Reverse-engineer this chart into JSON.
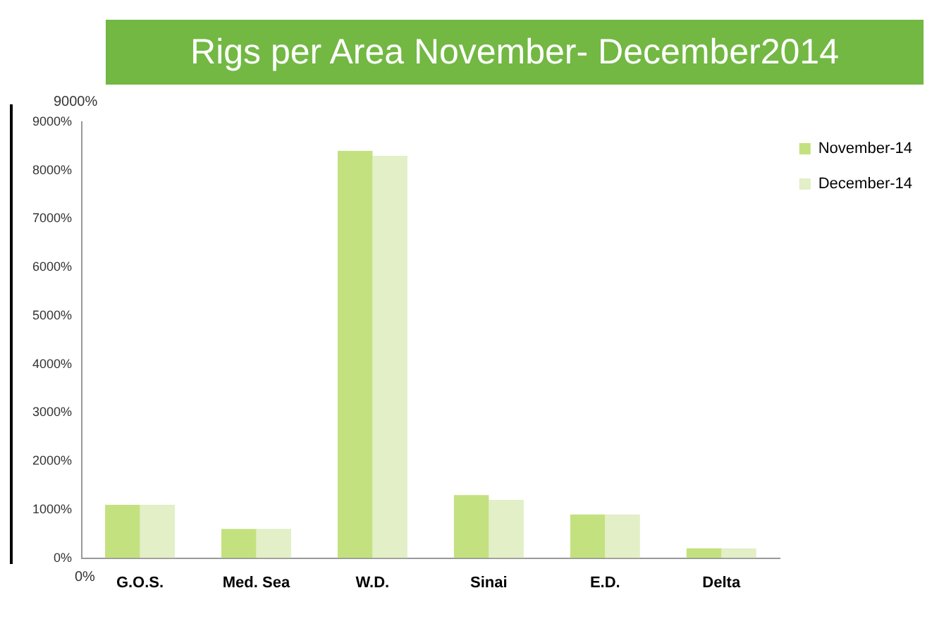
{
  "chart_data": {
    "type": "bar",
    "title": "Rigs per Area November- December2014",
    "categories": [
      "G.O.S.",
      "Med. Sea",
      "W.D.",
      "Sinai",
      "E.D.",
      "Delta"
    ],
    "series": [
      {
        "name": "November-14",
        "color": "#c4e17f",
        "values": [
          1100,
          600,
          8400,
          1300,
          900,
          200
        ]
      },
      {
        "name": "December-14",
        "color": "#e2efc7",
        "values": [
          1100,
          600,
          8300,
          1200,
          900,
          200
        ]
      }
    ],
    "ylim": [
      0,
      9000
    ],
    "yticks": [
      {
        "value": 0,
        "label": "0%"
      },
      {
        "value": 1000,
        "label": "1000%"
      },
      {
        "value": 2000,
        "label": "2000%"
      },
      {
        "value": 3000,
        "label": "3000%"
      },
      {
        "value": 4000,
        "label": "4000%"
      },
      {
        "value": 5000,
        "label": "5000%"
      },
      {
        "value": 6000,
        "label": "6000%"
      },
      {
        "value": 7000,
        "label": "7000%"
      },
      {
        "value": 8000,
        "label": "8000%"
      },
      {
        "value": 9000,
        "label": "9000%"
      }
    ],
    "annotations": [
      "9000%",
      "0%"
    ],
    "grid": false,
    "legend": "right"
  }
}
